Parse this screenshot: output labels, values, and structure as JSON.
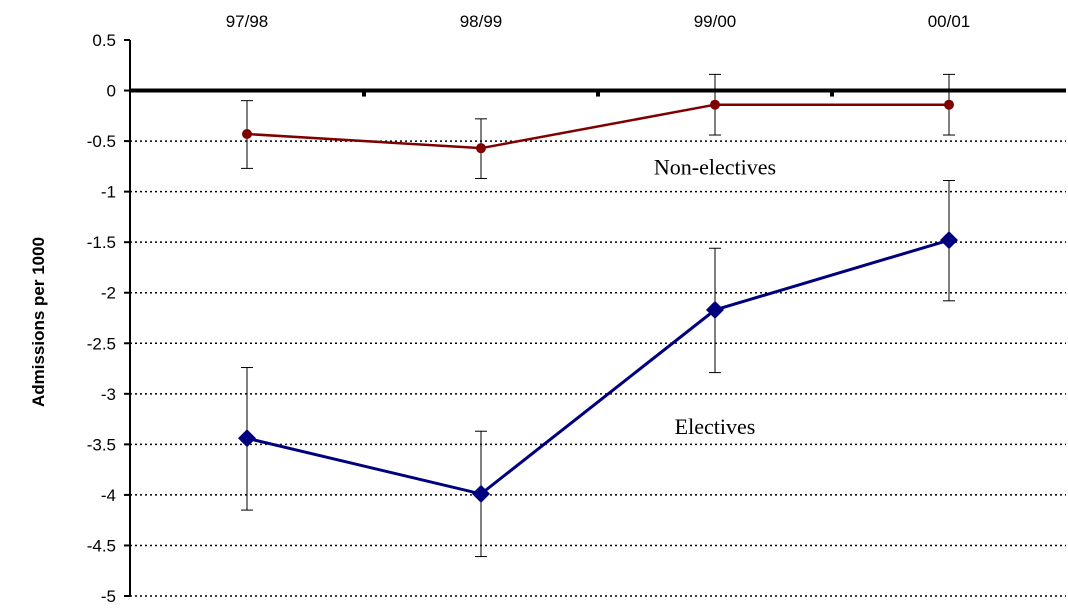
{
  "chart_data": {
    "type": "line",
    "title": "",
    "xlabel": "",
    "ylabel": "Admissions per 1000",
    "categories": [
      "97/98",
      "98/99",
      "99/00",
      "00/01"
    ],
    "x_axis_position": "top",
    "ylim": [
      -5,
      0.5
    ],
    "yticks": [
      "0.5",
      "0",
      "-0.5",
      "-1",
      "-1.5",
      "-2",
      "-2.5",
      "-3",
      "-3.5",
      "-4",
      "-4.5",
      "-5"
    ],
    "grid": "horizontal dotted",
    "legend": "none",
    "series": [
      {
        "values": [
          -0.43,
          -0.57,
          -0.14,
          -0.14
        ],
        "err_low": [
          -0.77,
          -0.87,
          -0.44,
          -0.44
        ],
        "err_high": [
          -0.1,
          -0.28,
          0.16,
          0.16
        ],
        "color": "#7f0000",
        "marker": "circle"
      },
      {
        "values": [
          -3.44,
          -3.99,
          -2.17,
          -1.48
        ],
        "err_low": [
          -4.15,
          -4.61,
          -2.79,
          -2.08
        ],
        "err_high": [
          -2.74,
          -3.37,
          -1.56,
          -0.89
        ],
        "color": "#00007f",
        "marker": "diamond"
      }
    ],
    "annotations": [
      {
        "text": "Non-electives",
        "x": 2.0,
        "y": -0.75
      },
      {
        "text": "Electives",
        "x": 2.0,
        "y": -3.32
      }
    ]
  }
}
